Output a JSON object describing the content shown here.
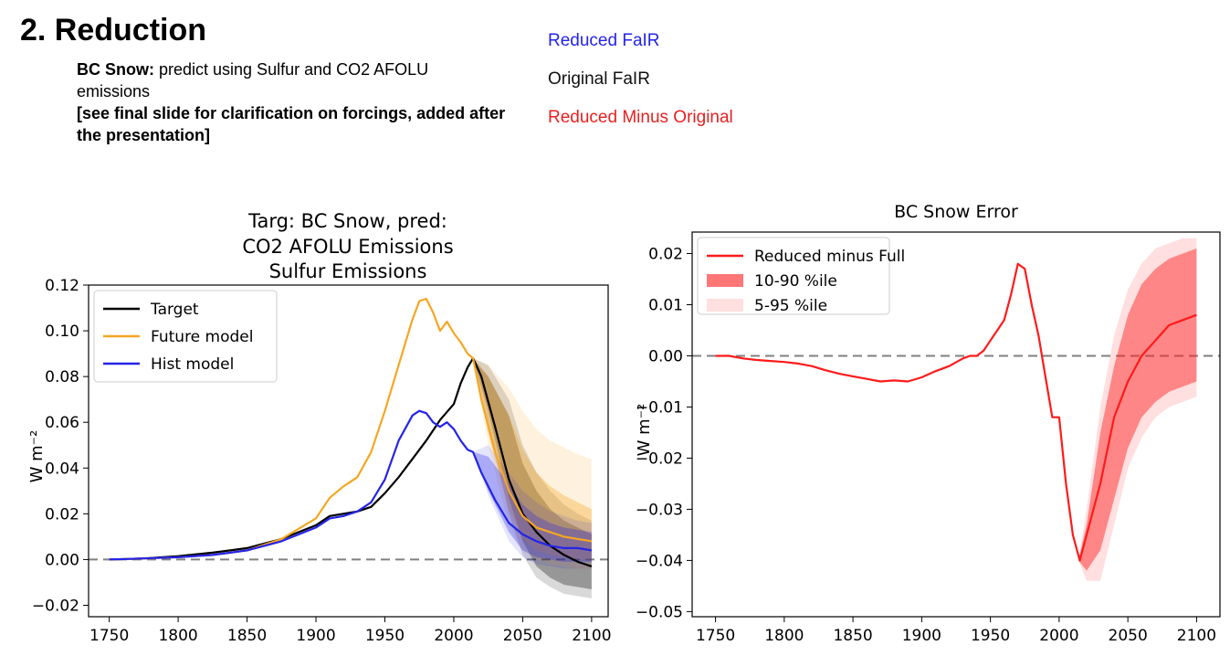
{
  "slide": {
    "title": "2. Reduction",
    "note_bold": "BC Snow:",
    "note_text": " predict using Sulfur and CO2 AFOLU emissions",
    "note_line2": "[see final slide for clarification on forcings, added after the presentation]"
  },
  "color_legend": [
    {
      "label": "Reduced FaIR",
      "color": "#2424e8"
    },
    {
      "label": "Original FaIR",
      "color": "#111111"
    },
    {
      "label": "Reduced Minus Original",
      "color": "#e82020"
    }
  ],
  "chart_data": [
    {
      "type": "line",
      "title": [
        "Targ: BC Snow, pred:",
        "CO2 AFOLU Emissions",
        "Sulfur Emissions"
      ],
      "xlabel": "",
      "ylabel": "W m⁻²",
      "xlim": [
        1735,
        2112
      ],
      "ylim": [
        -0.025,
        0.12
      ],
      "xticks": [
        1750,
        1800,
        1850,
        1900,
        1950,
        2000,
        2050,
        2100
      ],
      "xtick_labels": [
        "1750",
        "1800",
        "1850",
        "1900",
        "1950",
        "2000",
        "2050",
        "2100"
      ],
      "yticks": [
        -0.02,
        0.0,
        0.02,
        0.04,
        0.06,
        0.08,
        0.1,
        0.12
      ],
      "ytick_labels": [
        "−0.02",
        "0.00",
        "0.02",
        "0.04",
        "0.06",
        "0.08",
        "0.10",
        "0.12"
      ],
      "legend_position": "top-left",
      "zero_line": true,
      "series": [
        {
          "name": "Target",
          "color": "#000000",
          "x": [
            1750,
            1775,
            1800,
            1825,
            1850,
            1875,
            1900,
            1910,
            1920,
            1930,
            1940,
            1950,
            1960,
            1970,
            1980,
            1990,
            2000,
            2005,
            2010,
            2014,
            2020,
            2030,
            2040,
            2050,
            2060,
            2070,
            2080,
            2090,
            2100
          ],
          "y": [
            0.0,
            0.0005,
            0.0015,
            0.003,
            0.005,
            0.009,
            0.015,
            0.019,
            0.02,
            0.021,
            0.023,
            0.029,
            0.036,
            0.044,
            0.052,
            0.061,
            0.068,
            0.077,
            0.084,
            0.088,
            0.08,
            0.058,
            0.035,
            0.02,
            0.012,
            0.006,
            0.002,
            -0.001,
            -0.003
          ]
        },
        {
          "name": "Future model",
          "color": "#f5a623",
          "x": [
            1750,
            1775,
            1800,
            1825,
            1850,
            1875,
            1900,
            1910,
            1920,
            1930,
            1940,
            1950,
            1960,
            1970,
            1975,
            1980,
            1985,
            1990,
            1995,
            2000,
            2005,
            2010,
            2014,
            2020,
            2030,
            2040,
            2050,
            2060,
            2070,
            2080,
            2090,
            2100
          ],
          "y": [
            0.0,
            0.0005,
            0.001,
            0.002,
            0.004,
            0.009,
            0.018,
            0.027,
            0.032,
            0.036,
            0.047,
            0.065,
            0.085,
            0.105,
            0.113,
            0.114,
            0.108,
            0.1,
            0.104,
            0.099,
            0.095,
            0.09,
            0.088,
            0.07,
            0.047,
            0.03,
            0.019,
            0.014,
            0.012,
            0.01,
            0.009,
            0.008
          ]
        },
        {
          "name": "Hist model",
          "color": "#2424e8",
          "x": [
            1750,
            1775,
            1800,
            1825,
            1850,
            1875,
            1900,
            1910,
            1920,
            1930,
            1940,
            1950,
            1960,
            1970,
            1975,
            1980,
            1985,
            1990,
            1995,
            2000,
            2005,
            2010,
            2014,
            2020,
            2030,
            2040,
            2050,
            2060,
            2070,
            2080,
            2090,
            2100
          ],
          "y": [
            0.0,
            0.0005,
            0.001,
            0.002,
            0.004,
            0.008,
            0.014,
            0.018,
            0.019,
            0.021,
            0.025,
            0.035,
            0.052,
            0.063,
            0.065,
            0.064,
            0.06,
            0.058,
            0.06,
            0.057,
            0.052,
            0.048,
            0.047,
            0.038,
            0.026,
            0.016,
            0.011,
            0.008,
            0.006,
            0.005,
            0.005,
            0.004
          ]
        }
      ],
      "bands": [
        {
          "name": "Target 5-95",
          "color": "#000000",
          "opacity": 0.15,
          "x": [
            2014,
            2025,
            2040,
            2050,
            2060,
            2070,
            2080,
            2090,
            2100
          ],
          "lower": [
            0.088,
            0.06,
            0.02,
            0.002,
            -0.008,
            -0.012,
            -0.015,
            -0.016,
            -0.017
          ],
          "upper": [
            0.088,
            0.085,
            0.07,
            0.05,
            0.038,
            0.03,
            0.024,
            0.02,
            0.017
          ]
        },
        {
          "name": "Target 10-90",
          "color": "#000000",
          "opacity": 0.3,
          "x": [
            2014,
            2025,
            2040,
            2050,
            2060,
            2070,
            2080,
            2090,
            2100
          ],
          "lower": [
            0.088,
            0.065,
            0.027,
            0.008,
            -0.003,
            -0.008,
            -0.011,
            -0.012,
            -0.013
          ],
          "upper": [
            0.088,
            0.08,
            0.063,
            0.042,
            0.03,
            0.022,
            0.017,
            0.014,
            0.011
          ]
        },
        {
          "name": "Future 5-95",
          "color": "#f5a623",
          "opacity": 0.15,
          "x": [
            2014,
            2025,
            2040,
            2050,
            2060,
            2070,
            2080,
            2090,
            2100
          ],
          "lower": [
            0.088,
            0.05,
            0.015,
            0.004,
            0.0,
            -0.002,
            -0.003,
            -0.004,
            -0.004
          ],
          "upper": [
            0.088,
            0.085,
            0.075,
            0.065,
            0.057,
            0.052,
            0.049,
            0.046,
            0.044
          ]
        },
        {
          "name": "Future 10-90",
          "color": "#f5a623",
          "opacity": 0.35,
          "x": [
            2014,
            2025,
            2040,
            2050,
            2060,
            2070,
            2080,
            2090,
            2100
          ],
          "lower": [
            0.088,
            0.055,
            0.022,
            0.009,
            0.004,
            0.002,
            0.001,
            0.0,
            0.0
          ],
          "upper": [
            0.088,
            0.08,
            0.063,
            0.048,
            0.038,
            0.032,
            0.028,
            0.025,
            0.022
          ]
        },
        {
          "name": "Hist 5-95",
          "color": "#2424e8",
          "opacity": 0.12,
          "x": [
            2014,
            2025,
            2040,
            2050,
            2060,
            2070,
            2080,
            2090,
            2100
          ],
          "lower": [
            0.047,
            0.028,
            0.008,
            0.001,
            -0.002,
            -0.003,
            -0.004,
            -0.004,
            -0.004
          ],
          "upper": [
            0.047,
            0.05,
            0.038,
            0.03,
            0.025,
            0.021,
            0.019,
            0.017,
            0.016
          ]
        },
        {
          "name": "Hist 10-90",
          "color": "#2424e8",
          "opacity": 0.3,
          "x": [
            2014,
            2025,
            2040,
            2050,
            2060,
            2070,
            2080,
            2090,
            2100
          ],
          "lower": [
            0.047,
            0.03,
            0.012,
            0.004,
            0.001,
            0.0,
            -0.001,
            -0.001,
            -0.001
          ],
          "upper": [
            0.047,
            0.045,
            0.033,
            0.024,
            0.019,
            0.016,
            0.014,
            0.013,
            0.012
          ]
        }
      ],
      "legend": [
        {
          "label": "Target",
          "color": "#000000"
        },
        {
          "label": "Future model",
          "color": "#f5a623"
        },
        {
          "label": "Hist model",
          "color": "#2424e8"
        }
      ]
    },
    {
      "type": "line",
      "title": [
        "BC Snow Error"
      ],
      "xlabel": "",
      "ylabel": "W m⁻²",
      "xlim": [
        1733,
        2117
      ],
      "ylim": [
        -0.051,
        0.0242
      ],
      "xticks": [
        1750,
        1800,
        1850,
        1900,
        1950,
        2000,
        2050,
        2100
      ],
      "xtick_labels": [
        "1750",
        "1800",
        "1850",
        "1900",
        "1950",
        "2000",
        "2050",
        "2100"
      ],
      "yticks": [
        -0.05,
        -0.04,
        -0.03,
        -0.02,
        -0.01,
        0.0,
        0.01,
        0.02
      ],
      "ytick_labels": [
        "−0.05",
        "−0.04",
        "−0.03",
        "−0.02",
        "−0.01",
        "0.00",
        "0.01",
        "0.02"
      ],
      "legend_position": "top-left",
      "zero_line": true,
      "series": [
        {
          "name": "Reduced minus Full",
          "color": "#ff1a1a",
          "x": [
            1750,
            1760,
            1770,
            1780,
            1790,
            1800,
            1810,
            1820,
            1830,
            1840,
            1850,
            1860,
            1870,
            1880,
            1890,
            1900,
            1910,
            1920,
            1930,
            1935,
            1940,
            1945,
            1950,
            1955,
            1960,
            1965,
            1970,
            1975,
            1980,
            1985,
            1990,
            1995,
            2000,
            2005,
            2010,
            2015,
            2020,
            2030,
            2040,
            2050,
            2060,
            2070,
            2080,
            2090,
            2100
          ],
          "y": [
            0.0,
            0.0,
            -0.0005,
            -0.0008,
            -0.001,
            -0.0012,
            -0.0015,
            -0.002,
            -0.0028,
            -0.0035,
            -0.004,
            -0.0045,
            -0.005,
            -0.0048,
            -0.005,
            -0.0042,
            -0.003,
            -0.002,
            -0.0005,
            0.0,
            0.0,
            0.001,
            0.003,
            0.005,
            0.007,
            0.012,
            0.018,
            0.017,
            0.01,
            0.004,
            -0.004,
            -0.012,
            -0.012,
            -0.025,
            -0.035,
            -0.04,
            -0.035,
            -0.025,
            -0.012,
            -0.005,
            0.0,
            0.003,
            0.006,
            0.007,
            0.008
          ]
        }
      ],
      "bands": [
        {
          "name": "5-95 %ile",
          "color": "#ff4d4d",
          "opacity": 0.18,
          "x": [
            2014,
            2020,
            2030,
            2040,
            2050,
            2060,
            2070,
            2080,
            2090,
            2100
          ],
          "lower": [
            -0.04,
            -0.044,
            -0.044,
            -0.033,
            -0.022,
            -0.016,
            -0.012,
            -0.01,
            -0.009,
            -0.008
          ],
          "upper": [
            -0.04,
            -0.03,
            -0.01,
            0.004,
            0.013,
            0.018,
            0.021,
            0.022,
            0.023,
            0.023
          ]
        },
        {
          "name": "10-90 %ile",
          "color": "#ff1a1a",
          "opacity": 0.45,
          "x": [
            2014,
            2020,
            2030,
            2040,
            2050,
            2060,
            2070,
            2080,
            2090,
            2100
          ],
          "lower": [
            -0.04,
            -0.042,
            -0.038,
            -0.028,
            -0.018,
            -0.012,
            -0.009,
            -0.007,
            -0.006,
            -0.005
          ],
          "upper": [
            -0.04,
            -0.033,
            -0.015,
            -0.002,
            0.008,
            0.014,
            0.017,
            0.019,
            0.02,
            0.021
          ]
        }
      ],
      "legend": [
        {
          "label": "Reduced minus Full",
          "color": "#ff1a1a",
          "kind": "line"
        },
        {
          "label": "10-90 %ile",
          "color": "#ff1a1a",
          "kind": "patch",
          "opacity": 0.6
        },
        {
          "label": "5-95 %ile",
          "color": "#ff4d4d",
          "kind": "patch",
          "opacity": 0.18
        }
      ]
    }
  ]
}
